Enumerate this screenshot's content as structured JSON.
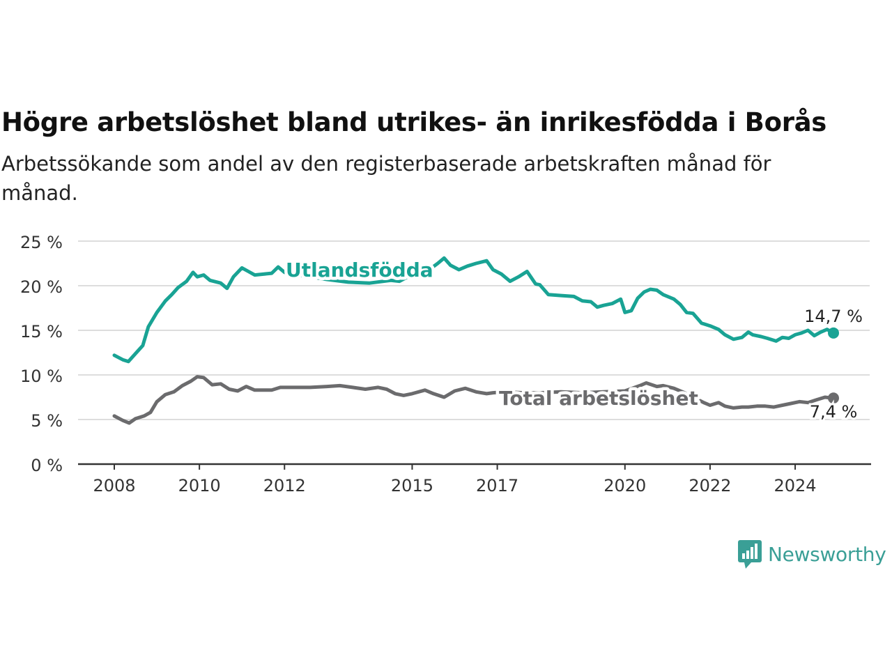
{
  "title": "Högre arbetslöshet bland utrikes- än inrikesfödda i Borås",
  "subtitle": "Arbetssökande som andel av den registerbaserade arbetskraften månad för månad.",
  "brand": "Newsworthy",
  "colors": {
    "foreign": "#19a394",
    "total": "#6b6b6d",
    "grid": "#dddddd",
    "axis": "#333333"
  },
  "chart_data": {
    "type": "line",
    "title": "Högre arbetslöshet bland utrikes- än inrikesfödda i Borås",
    "ylim": [
      0,
      25
    ],
    "yticks": [
      0,
      5,
      10,
      15,
      20,
      25
    ],
    "ytick_labels": [
      "0 %",
      "5 %",
      "10 %",
      "15 %",
      "20 %",
      "25 %"
    ],
    "xlim": [
      2008,
      2024.9
    ],
    "xticks": [
      2008,
      2010,
      2012,
      2015,
      2017,
      2020,
      2022,
      2024
    ],
    "xtick_labels": [
      "2008",
      "2010",
      "2012",
      "2015",
      "2017",
      "2020",
      "2022",
      "2024"
    ],
    "grid": true,
    "series": [
      {
        "name": "Utlandsfödda",
        "key": "foreign",
        "end_label": "14,7 %",
        "x": [
          2008.0,
          2008.2,
          2008.33,
          2008.5,
          2008.67,
          2008.8,
          2009.0,
          2009.2,
          2009.35,
          2009.5,
          2009.7,
          2009.85,
          2009.95,
          2010.1,
          2010.25,
          2010.5,
          2010.65,
          2010.8,
          2011.0,
          2011.15,
          2011.3,
          2011.5,
          2011.7,
          2011.85,
          2012.0,
          2012.3,
          2012.6,
          2013.0,
          2013.5,
          2014.0,
          2014.5,
          2014.7,
          2014.9,
          2015.2,
          2015.4,
          2015.6,
          2015.75,
          2015.9,
          2016.1,
          2016.3,
          2016.5,
          2016.75,
          2016.9,
          2017.1,
          2017.3,
          2017.5,
          2017.7,
          2017.9,
          2018.0,
          2018.2,
          2018.5,
          2018.8,
          2019.0,
          2019.2,
          2019.35,
          2019.5,
          2019.7,
          2019.9,
          2020.0,
          2020.15,
          2020.3,
          2020.45,
          2020.6,
          2020.75,
          2020.9,
          2021.15,
          2021.3,
          2021.45,
          2021.6,
          2021.8,
          2022.0,
          2022.2,
          2022.35,
          2022.55,
          2022.75,
          2022.9,
          2023.0,
          2023.2,
          2023.35,
          2023.55,
          2023.7,
          2023.85,
          2024.0,
          2024.15,
          2024.3,
          2024.45,
          2024.6,
          2024.75,
          2024.9
        ],
        "y": [
          12.2,
          11.7,
          11.5,
          12.4,
          13.3,
          15.4,
          17.0,
          18.3,
          19.0,
          19.8,
          20.5,
          21.5,
          21.0,
          21.2,
          20.6,
          20.3,
          19.7,
          21.0,
          22.0,
          21.6,
          21.2,
          21.3,
          21.4,
          22.1,
          21.5,
          21.2,
          21.0,
          20.7,
          20.4,
          20.3,
          20.6,
          20.5,
          21.0,
          21.2,
          21.8,
          22.5,
          23.1,
          22.3,
          21.8,
          22.2,
          22.5,
          22.8,
          21.8,
          21.3,
          20.5,
          21.0,
          21.6,
          20.2,
          20.1,
          19.0,
          18.9,
          18.8,
          18.3,
          18.2,
          17.6,
          17.8,
          18.0,
          18.5,
          17.0,
          17.2,
          18.6,
          19.3,
          19.6,
          19.5,
          19.0,
          18.5,
          17.9,
          17.0,
          16.9,
          15.8,
          15.5,
          15.1,
          14.5,
          14.0,
          14.2,
          14.8,
          14.5,
          14.3,
          14.1,
          13.8,
          14.2,
          14.1,
          14.5,
          14.7,
          15.0,
          14.4,
          14.8,
          15.1,
          14.7
        ]
      },
      {
        "name": "Total arbetslöshet",
        "key": "total",
        "end_label": "7,4 %",
        "x": [
          2008.0,
          2008.2,
          2008.35,
          2008.5,
          2008.7,
          2008.85,
          2009.0,
          2009.2,
          2009.4,
          2009.6,
          2009.8,
          2009.95,
          2010.1,
          2010.3,
          2010.5,
          2010.7,
          2010.9,
          2011.1,
          2011.3,
          2011.5,
          2011.7,
          2011.9,
          2012.1,
          2012.3,
          2012.6,
          2013.0,
          2013.3,
          2013.6,
          2013.9,
          2014.2,
          2014.4,
          2014.6,
          2014.8,
          2015.0,
          2015.3,
          2015.5,
          2015.75,
          2016.0,
          2016.25,
          2016.5,
          2016.75,
          2016.9,
          2017.2,
          2017.6,
          2018.0,
          2018.5,
          2019.0,
          2019.5,
          2020.0,
          2020.35,
          2020.5,
          2020.75,
          2020.9,
          2021.15,
          2021.4,
          2021.65,
          2021.85,
          2022.0,
          2022.2,
          2022.35,
          2022.55,
          2022.75,
          2022.9,
          2023.1,
          2023.3,
          2023.5,
          2023.7,
          2023.9,
          2024.1,
          2024.3,
          2024.5,
          2024.7,
          2024.9
        ],
        "y": [
          5.4,
          4.9,
          4.6,
          5.1,
          5.4,
          5.8,
          7.0,
          7.8,
          8.1,
          8.8,
          9.3,
          9.8,
          9.7,
          8.9,
          9.0,
          8.4,
          8.2,
          8.7,
          8.3,
          8.3,
          8.3,
          8.6,
          8.6,
          8.6,
          8.6,
          8.7,
          8.8,
          8.6,
          8.4,
          8.6,
          8.4,
          7.9,
          7.7,
          7.9,
          8.3,
          7.9,
          7.5,
          8.2,
          8.5,
          8.1,
          7.9,
          8.0,
          8.1,
          8.0,
          8.0,
          8.1,
          8.0,
          8.1,
          8.2,
          8.8,
          9.1,
          8.7,
          8.8,
          8.5,
          8.0,
          7.4,
          6.9,
          6.6,
          6.9,
          6.5,
          6.3,
          6.4,
          6.4,
          6.5,
          6.5,
          6.4,
          6.6,
          6.8,
          7.0,
          6.9,
          7.2,
          7.5,
          7.4
        ]
      }
    ]
  }
}
